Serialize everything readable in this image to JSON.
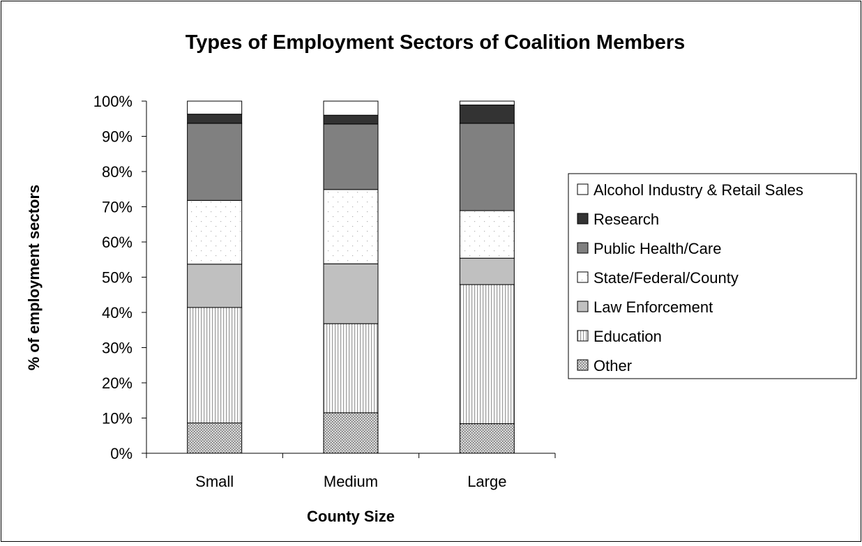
{
  "chart_data": {
    "type": "bar",
    "stacked": true,
    "title": "Types of Employment Sectors of Coalition Members",
    "xlabel": "County Size",
    "ylabel": "% of employment sectors",
    "categories": [
      "Small",
      "Medium",
      "Large"
    ],
    "ylim": [
      0,
      100
    ],
    "yticks": [
      "0%",
      "10%",
      "20%",
      "30%",
      "40%",
      "50%",
      "60%",
      "70%",
      "80%",
      "90%",
      "100%"
    ],
    "legend_position": "right",
    "series": [
      {
        "name": "Other",
        "values": [
          8.6,
          11.5,
          8.4
        ],
        "fill": "pattern-dots"
      },
      {
        "name": "Education",
        "values": [
          32.8,
          25.3,
          39.5
        ],
        "fill": "pattern-vlines"
      },
      {
        "name": "Law Enforcement",
        "values": [
          12.3,
          17.0,
          7.5
        ],
        "fill": "#c0c0c0"
      },
      {
        "name": "State/Federal/County",
        "values": [
          18.1,
          21.1,
          13.5
        ],
        "fill": "pattern-sparse"
      },
      {
        "name": "Public Health/Care",
        "values": [
          21.9,
          18.6,
          24.8
        ],
        "fill": "#808080"
      },
      {
        "name": "Research",
        "values": [
          2.6,
          2.5,
          5.2
        ],
        "fill": "#333333"
      },
      {
        "name": "Alcohol Industry & Retail Sales",
        "values": [
          3.7,
          4.0,
          1.1
        ],
        "fill": "#ffffff"
      }
    ]
  }
}
